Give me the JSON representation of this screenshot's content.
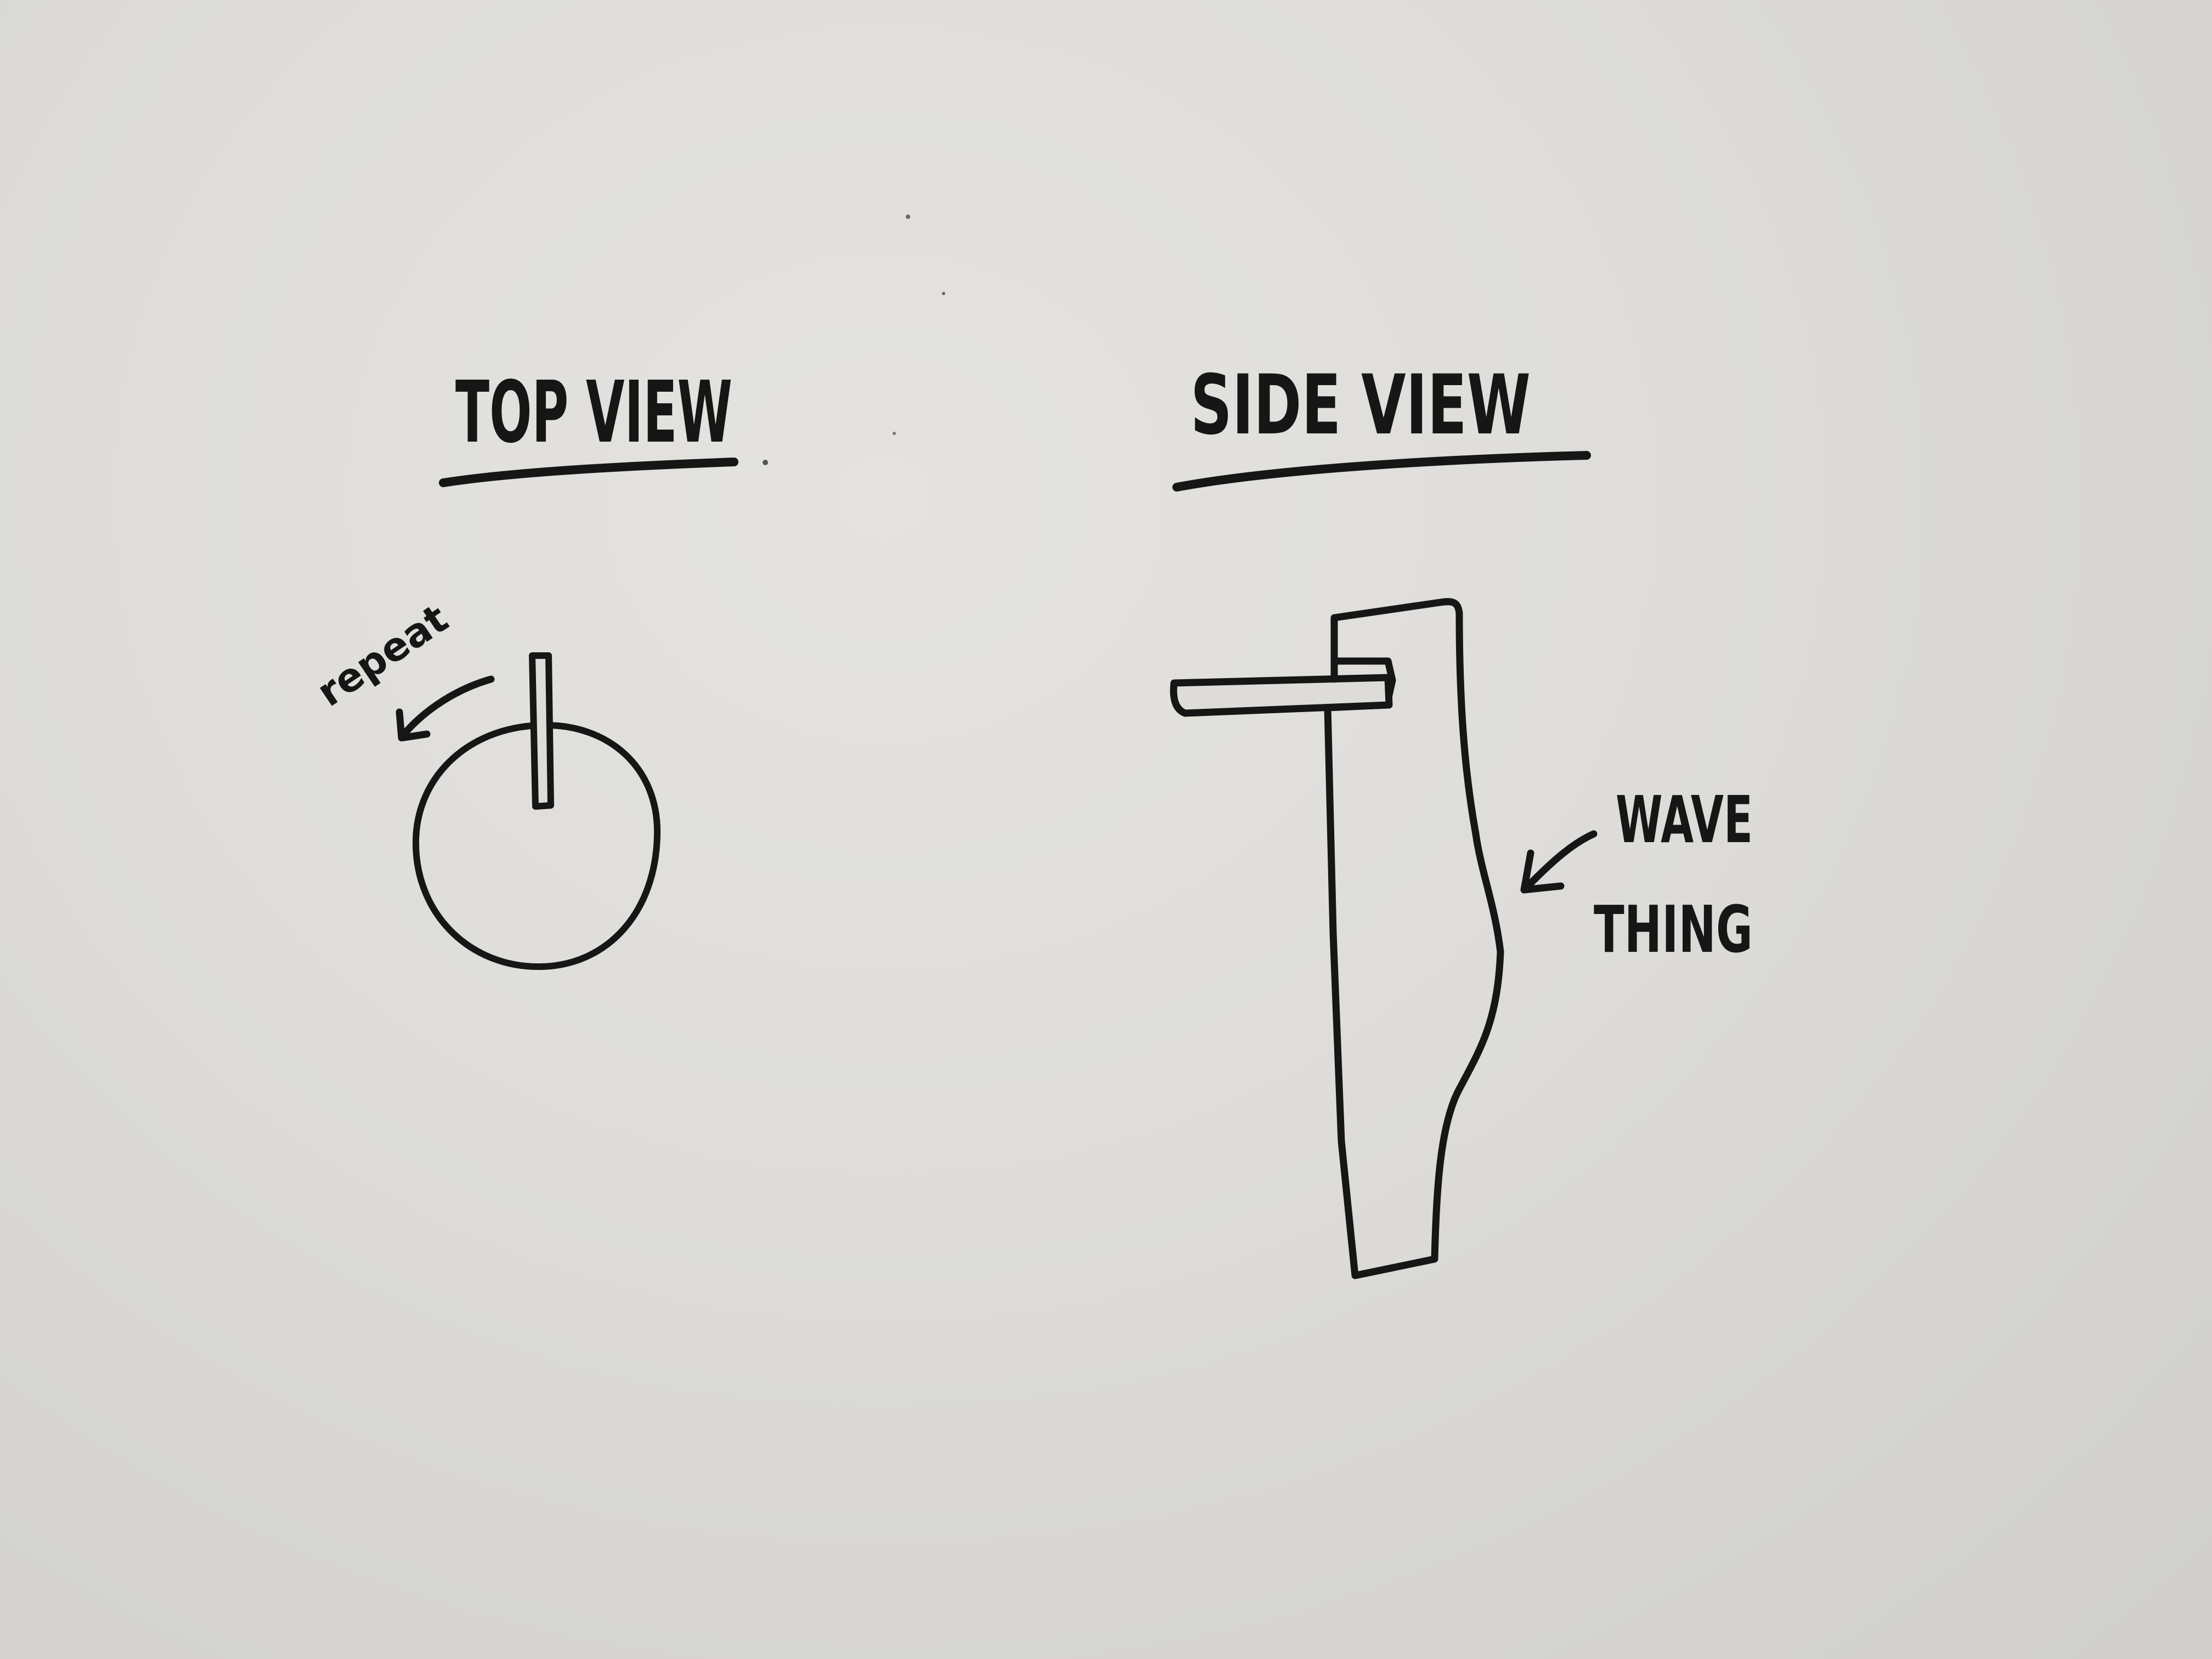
{
  "top_view": {
    "title": "TOP VIEW",
    "annotation": "repeat"
  },
  "side_view": {
    "title": "SIDE VIEW",
    "annotation_line1": "WAVE",
    "annotation_line2": "THING"
  },
  "ink_color": "#161616",
  "paper_color": "#dddcd9"
}
